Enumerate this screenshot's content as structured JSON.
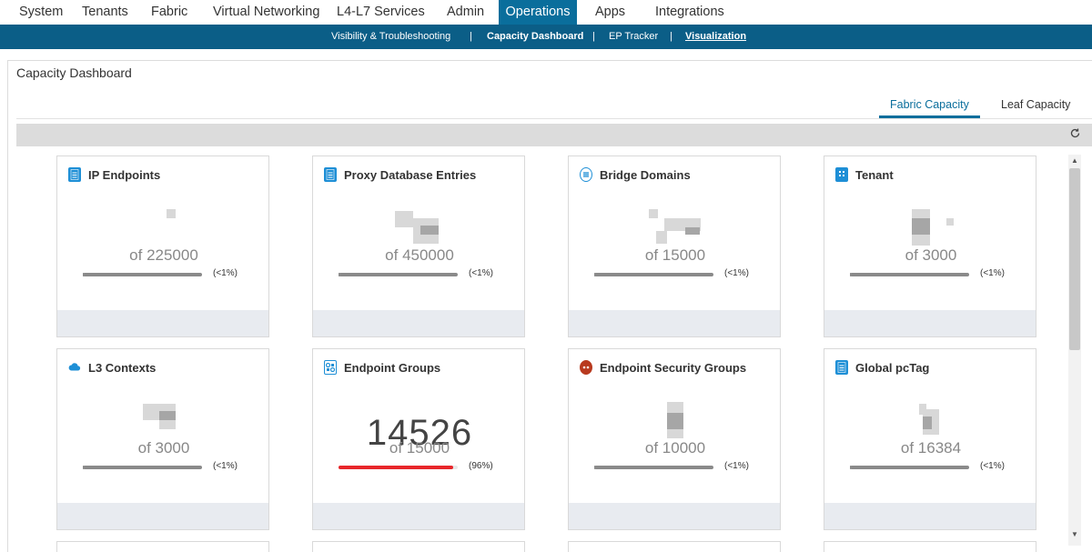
{
  "topnav": {
    "tabs": [
      {
        "label": "System"
      },
      {
        "label": "Tenants"
      },
      {
        "label": "Fabric"
      },
      {
        "label": "Virtual Networking"
      },
      {
        "label": "L4-L7 Services"
      },
      {
        "label": "Admin"
      },
      {
        "label": "Operations",
        "active": true
      },
      {
        "label": "Apps"
      },
      {
        "label": "Integrations"
      }
    ]
  },
  "subnav": {
    "items": [
      {
        "label": "Visibility & Troubleshooting"
      },
      {
        "label": "Capacity Dashboard",
        "active": true
      },
      {
        "label": "EP Tracker"
      },
      {
        "label": "Visualization"
      }
    ],
    "separator": "|"
  },
  "page": {
    "title": "Capacity Dashboard",
    "tabs": [
      {
        "label": "Fabric Capacity",
        "active": true
      },
      {
        "label": "Leaf Capacity"
      }
    ]
  },
  "cards": [
    {
      "title": "IP Endpoints",
      "icon": "document-icon",
      "icon_color": "#1e8fd6",
      "value": "",
      "of": "of 225000",
      "pct": "(<1%)",
      "usage": 0.005,
      "bar_color": "#8a8a8a"
    },
    {
      "title": "Proxy Database Entries",
      "icon": "document-icon",
      "icon_color": "#1e8fd6",
      "value": "",
      "of": "of 450000",
      "pct": "(<1%)",
      "usage": 0.005,
      "bar_color": "#8a8a8a"
    },
    {
      "title": "Bridge Domains",
      "icon": "bridge-icon",
      "icon_color": "#1e8fd6",
      "value": "",
      "of": "of 15000",
      "pct": "(<1%)",
      "usage": 0.005,
      "bar_color": "#8a8a8a"
    },
    {
      "title": "Tenant",
      "icon": "building-icon",
      "icon_color": "#1e8fd6",
      "value": "",
      "of": "of 3000",
      "pct": "(<1%)",
      "usage": 0.005,
      "bar_color": "#8a8a8a"
    },
    {
      "title": "L3 Contexts",
      "icon": "cloud-icon",
      "icon_color": "#1e8fd6",
      "value": "",
      "of": "of 3000",
      "pct": "(<1%)",
      "usage": 0.005,
      "bar_color": "#8a8a8a"
    },
    {
      "title": "Endpoint Groups",
      "icon": "groups-icon",
      "icon_color": "#1e8fd6",
      "value": "14526",
      "of": "of 15000",
      "pct": "(96%)",
      "usage": 0.96,
      "bar_color": "#e8262a"
    },
    {
      "title": "Endpoint Security Groups",
      "icon": "esg-icon",
      "icon_color": "#c0392b",
      "value": "",
      "of": "of 10000",
      "pct": "(<1%)",
      "usage": 0.005,
      "bar_color": "#8a8a8a"
    },
    {
      "title": "Global pcTag",
      "icon": "document-icon",
      "icon_color": "#1e8fd6",
      "value": "",
      "of": "of 16384",
      "pct": "(<1%)",
      "usage": 0.005,
      "bar_color": "#8a8a8a"
    }
  ]
}
